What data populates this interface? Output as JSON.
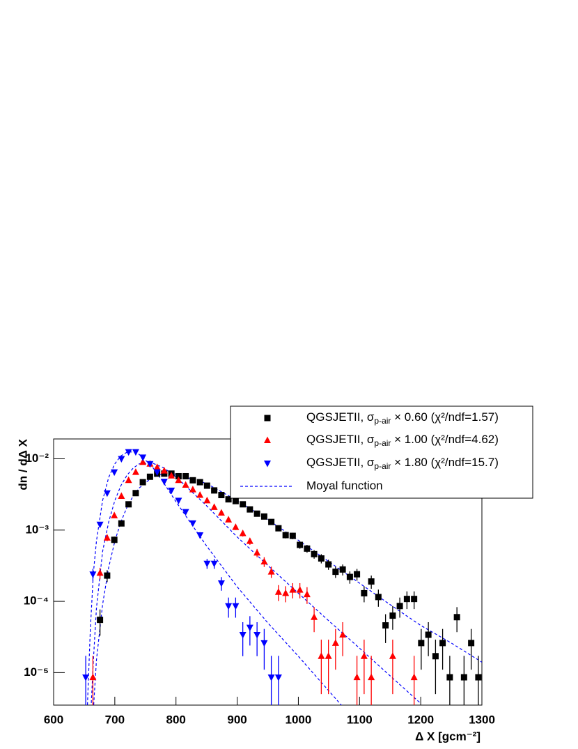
{
  "chart_data": {
    "type": "scatter",
    "x_label": "Δ X    [gcm⁻²]",
    "y_label": "dn / dΔ X",
    "log_y": true,
    "xlim": [
      600,
      1300
    ],
    "xticks": [
      600,
      700,
      800,
      900,
      1000,
      1100,
      1200,
      1300
    ],
    "ylim": [
      3.5e-06,
      0.019
    ],
    "yticks": [
      {
        "value": 1e-05,
        "label": "10⁻⁵"
      },
      {
        "value": 0.0001,
        "label": "10⁻⁴"
      },
      {
        "value": 0.001,
        "label": "10⁻³"
      },
      {
        "value": 0.01,
        "label": "10⁻²"
      }
    ],
    "x": [
      605.8,
      617.5,
      629.2,
      640.8,
      652.5,
      664.2,
      675.8,
      687.5,
      699.2,
      710.8,
      722.5,
      734.2,
      745.8,
      757.5,
      769.2,
      780.8,
      792.5,
      804.2,
      815.8,
      827.5,
      839.2,
      850.8,
      862.5,
      874.2,
      885.8,
      897.5,
      909.2,
      920.8,
      932.5,
      944.2,
      955.8,
      967.5,
      979.2,
      990.8,
      1002.5,
      1014.2,
      1025.8,
      1037.5,
      1049.2,
      1060.8,
      1072.5,
      1084.2,
      1095.8,
      1107.5,
      1119.2,
      1130.8,
      1142.5,
      1154.2,
      1165.8,
      1177.5,
      1189.2,
      1200.8,
      1212.5,
      1224.2,
      1235.8,
      1247.5,
      1259.2,
      1270.8,
      1282.5,
      1294.2
    ],
    "series": [
      {
        "name": "QGSJETII, σp-air × 0.60 (χ²/ndf=1.57)",
        "color": "#000000",
        "marker": "square",
        "values": [
          null,
          null,
          null,
          null,
          null,
          null,
          5.5e-05,
          0.00023,
          0.00073,
          0.00124,
          0.0023,
          0.0033,
          0.0047,
          0.0056,
          0.0062,
          0.0062,
          0.0062,
          0.0057,
          0.0057,
          0.005,
          0.0047,
          0.0042,
          0.0036,
          0.0031,
          0.0027,
          0.00255,
          0.0023,
          0.00195,
          0.0017,
          0.00155,
          0.0013,
          0.00106,
          0.00085,
          0.00083,
          0.00062,
          0.00055,
          0.00046,
          0.0004,
          0.00033,
          0.00026,
          0.00028,
          0.00022,
          0.00024,
          0.00013,
          0.00019,
          0.000115,
          4.6e-05,
          6.3e-05,
          8.6e-05,
          0.000108,
          0.000108,
          2.6e-05,
          3.4e-05,
          1.7e-05,
          2.6e-05,
          8.6e-06,
          6e-05,
          8.6e-06,
          2.6e-05,
          8.6e-06
        ],
        "errors": [
          null,
          null,
          null,
          null,
          null,
          null,
          2.2e-05,
          4.4e-05,
          7.9e-05,
          0.0001,
          0.00014,
          0.00017,
          0.0002,
          0.00022,
          0.00023,
          0.00023,
          0.00023,
          0.00022,
          0.00022,
          0.00021,
          0.0002,
          0.00019,
          0.00018,
          0.00016,
          0.00015,
          0.00015,
          0.00014,
          0.00013,
          0.00012,
          0.00012,
          0.00011,
          9.5e-05,
          8.5e-05,
          8.5e-05,
          7.3e-05,
          6.9e-05,
          6.3e-05,
          5.9e-05,
          5.3e-05,
          4.7e-05,
          4.9e-05,
          4.3e-05,
          4.5e-05,
          3.3e-05,
          4e-05,
          3.1e-05,
          2e-05,
          2.3e-05,
          2.7e-05,
          3e-05,
          3e-05,
          1.5e-05,
          1.7e-05,
          1.2e-05,
          1.5e-05,
          8.6e-06,
          2.3e-05,
          8.6e-06,
          1.5e-05,
          8.6e-06
        ]
      },
      {
        "name": "QGSJETII, σp-air × 1.00 (χ²/ndf=4.62)",
        "color": "#ff0000",
        "marker": "triangle-up",
        "values": [
          null,
          null,
          null,
          null,
          null,
          8.6e-06,
          0.00025,
          0.00078,
          0.0016,
          0.003,
          0.005,
          0.0065,
          0.009,
          0.0085,
          0.0076,
          0.0068,
          0.0058,
          0.005,
          0.0043,
          0.0037,
          0.0031,
          0.0026,
          0.0021,
          0.00175,
          0.0014,
          0.0011,
          0.0009,
          0.0007,
          0.00048,
          0.00036,
          0.00026,
          0.000135,
          0.00013,
          0.000145,
          0.000145,
          0.000125,
          6e-05,
          1.7e-05,
          1.7e-05,
          2.6e-05,
          3.4e-05,
          null,
          8.6e-06,
          1.7e-05,
          8.6e-06,
          null,
          null,
          1.7e-05,
          null,
          null,
          8.6e-06,
          null,
          null,
          null,
          null,
          null,
          null,
          null,
          null,
          null
        ],
        "errors": [
          null,
          null,
          null,
          null,
          null,
          8.6e-06,
          4.6e-05,
          8.2e-05,
          0.00012,
          0.00016,
          0.00021,
          0.00024,
          0.00028,
          0.00027,
          0.00026,
          0.00024,
          0.00022,
          0.00021,
          0.00019,
          0.00018,
          0.00016,
          0.00015,
          0.00013,
          0.00012,
          0.00011,
          9.7e-05,
          8.8e-05,
          7.8e-05,
          6.4e-05,
          5.6e-05,
          4.7e-05,
          3.4e-05,
          3.3e-05,
          3.5e-05,
          3.5e-05,
          3.3e-05,
          2.3e-05,
          1.2e-05,
          1.2e-05,
          1.5e-05,
          1.7e-05,
          null,
          8.6e-06,
          1.2e-05,
          8.6e-06,
          null,
          null,
          1.2e-05,
          null,
          null,
          8.6e-06,
          null,
          null,
          null,
          null,
          null,
          null,
          null,
          null,
          null
        ]
      },
      {
        "name": "QGSJETII, σp-air × 1.80 (χ²/ndf=15.7)",
        "color": "#0000ff",
        "marker": "triangle-down",
        "values": [
          null,
          null,
          null,
          null,
          8.6e-06,
          0.00024,
          0.0012,
          0.0033,
          0.0065,
          0.01,
          0.0125,
          0.0125,
          0.0105,
          0.0085,
          0.0065,
          0.0048,
          0.0036,
          0.0026,
          0.0018,
          0.00125,
          0.00085,
          0.00034,
          0.00034,
          0.00018,
          8.6e-05,
          8.6e-05,
          3.4e-05,
          4.3e-05,
          3.4e-05,
          2.6e-05,
          8.6e-06,
          8.6e-06,
          null,
          null,
          null,
          null,
          null,
          null,
          null,
          null,
          null,
          null,
          null,
          null,
          null,
          null,
          null,
          null,
          null,
          null,
          null,
          null,
          null,
          null,
          null,
          null,
          null,
          null,
          null,
          null
        ],
        "errors": [
          null,
          null,
          null,
          null,
          8.6e-06,
          4.6e-05,
          0.0001,
          0.00017,
          0.00024,
          0.00029,
          0.00033,
          0.00033,
          0.0003,
          0.00027,
          0.00024,
          0.0002,
          0.00018,
          0.00015,
          0.00012,
          0.0001,
          8.5e-05,
          5.4e-05,
          5.4e-05,
          3.9e-05,
          2.7e-05,
          2.7e-05,
          1.7e-05,
          1.9e-05,
          1.7e-05,
          1.5e-05,
          8.6e-06,
          8.6e-06,
          null,
          null,
          null,
          null,
          null,
          null,
          null,
          null,
          null,
          null,
          null,
          null,
          null,
          null,
          null,
          null,
          null,
          null,
          null,
          null,
          null,
          null,
          null,
          null,
          null,
          null,
          null,
          null
        ]
      }
    ],
    "fit_name": "Moyal function",
    "fit_color": "#0000ff",
    "fit_x": [
      655,
      660,
      665,
      670,
      680,
      690,
      700,
      710,
      720,
      730,
      740,
      760,
      780,
      800,
      850,
      900,
      950,
      1000,
      1050,
      1100,
      1150,
      1200,
      1250,
      1300
    ],
    "fits": [
      {
        "values": [
          null,
          null,
          3e-06,
          1.5e-05,
          9e-05,
          0.0003,
          0.0007,
          0.0013,
          0.0021,
          0.003,
          0.0039,
          0.0054,
          0.0062,
          0.0061,
          0.0045,
          0.0026,
          0.0014,
          0.00072,
          0.00036,
          0.00018,
          9e-05,
          4.6e-05,
          2.6e-05,
          1.4e-05
        ]
      },
      {
        "values": [
          null,
          2e-06,
          1.5e-05,
          8e-05,
          0.0005,
          0.0013,
          0.0026,
          0.0042,
          0.0059,
          0.0074,
          0.0085,
          0.0088,
          0.0075,
          0.0056,
          0.0022,
          0.0008,
          0.00032,
          0.00013,
          5.3e-05,
          2.2e-05,
          9e-06,
          3.7e-06,
          null,
          null
        ]
      },
      {
        "values": [
          3e-06,
          4e-05,
          0.00025,
          0.0007,
          0.0026,
          0.0055,
          0.0085,
          0.011,
          0.0124,
          0.0125,
          0.0115,
          0.008,
          0.0046,
          0.0025,
          0.0006,
          0.00016,
          5e-05,
          1.7e-05,
          5.5e-06,
          1.8e-06,
          null,
          null,
          null,
          null
        ]
      }
    ]
  }
}
